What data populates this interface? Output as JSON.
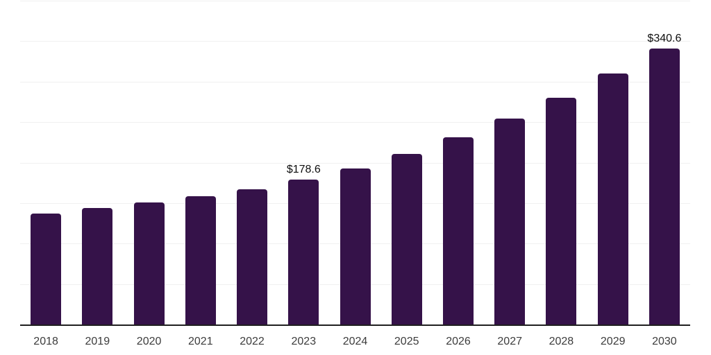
{
  "chart_data": {
    "type": "bar",
    "title": "",
    "xlabel": "",
    "ylabel": "",
    "categories": [
      "2018",
      "2019",
      "2020",
      "2021",
      "2022",
      "2023",
      "2024",
      "2025",
      "2026",
      "2027",
      "2028",
      "2029",
      "2030"
    ],
    "values": [
      137.0,
      144.0,
      150.8,
      158.5,
      167.0,
      178.6,
      192.7,
      210.5,
      231.5,
      254.5,
      280.0,
      310.0,
      340.6
    ],
    "data_labels": {
      "2023": "$178.6",
      "2030": "$340.6"
    },
    "ylim": [
      0,
      400
    ],
    "gridline_step": 50,
    "grid": true,
    "legend": false,
    "colors": {
      "bar": "#351249",
      "axis": "#1f1f1f",
      "gridline": "#f0f0f0",
      "tick_label": "#3c3c3c",
      "data_label": "#0d0d0d",
      "background": "#ffffff"
    }
  }
}
